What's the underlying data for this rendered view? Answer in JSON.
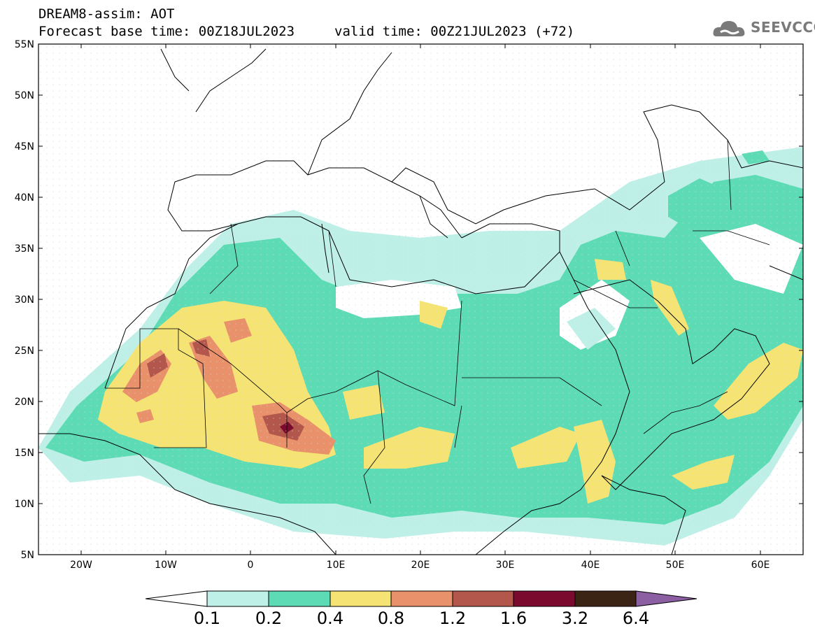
{
  "header": {
    "line1": "DREAM8-assim: AOT",
    "line2": "Forecast base time: 00Z18JUL2023",
    "valid": "valid time: 00Z21JUL2023 (+72)"
  },
  "logo": {
    "icon": "cloud-icon",
    "text": "SEEVCCC"
  },
  "map": {
    "lat_ticks": [
      "55N",
      "50N",
      "45N",
      "40N",
      "35N",
      "30N",
      "25N",
      "20N",
      "15N",
      "10N",
      "5N"
    ],
    "lon_ticks": [
      "20W",
      "10W",
      "0",
      "10E",
      "20E",
      "30E",
      "40E",
      "50E",
      "60E"
    ],
    "extent": {
      "lon_min": -25,
      "lon_max": 65,
      "lat_min": 5,
      "lat_max": 55
    }
  },
  "colorbar": {
    "labels": [
      "0.1",
      "0.2",
      "0.4",
      "0.8",
      "1.2",
      "1.6",
      "3.2",
      "6.4"
    ],
    "colors": [
      "#bff0e8",
      "#5ddbb4",
      "#f5e474",
      "#e8916a",
      "#b3574c",
      "#7a0a2e",
      "#3b2413",
      "#8c5fa3"
    ]
  }
}
